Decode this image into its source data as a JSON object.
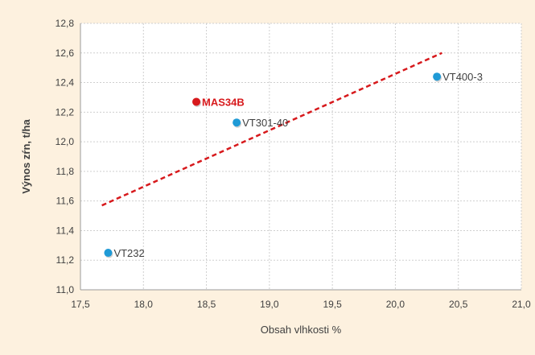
{
  "chart_data": {
    "type": "scatter",
    "title": "",
    "xlabel": "Obsah vlhkosti %",
    "ylabel": "Výnos zŕn, t/ha",
    "xlim": [
      17.5,
      21.0
    ],
    "ylim": [
      11.0,
      12.8
    ],
    "x_ticks": [
      "17,5",
      "18,0",
      "18,5",
      "19,0",
      "19,5",
      "20,0",
      "20,5",
      "21,0"
    ],
    "y_ticks": [
      "11,0",
      "11,2",
      "11,4",
      "11,6",
      "11,8",
      "12,0",
      "12,2",
      "12,4",
      "12,6",
      "12,8"
    ],
    "grid": true,
    "points": [
      {
        "label": "MAS34B",
        "x": 18.42,
        "y": 12.27,
        "color": "#d7191c",
        "highlight": true
      },
      {
        "label": "VT301-40",
        "x": 18.74,
        "y": 12.13,
        "color": "#1f9ad6",
        "highlight": false
      },
      {
        "label": "VT400-3",
        "x": 20.33,
        "y": 12.44,
        "color": "#1f9ad6",
        "highlight": false
      },
      {
        "label": "VT232",
        "x": 17.72,
        "y": 11.25,
        "color": "#1f9ad6",
        "highlight": false
      }
    ],
    "trendline": {
      "x": [
        17.67,
        20.37
      ],
      "y": [
        11.57,
        12.6
      ],
      "color": "#d7191c",
      "style": "dashed"
    }
  },
  "colors": {
    "background": "#fdf1df",
    "plot_background": "#ffffff",
    "grid": "#cfcfcf",
    "text": "#404040"
  }
}
